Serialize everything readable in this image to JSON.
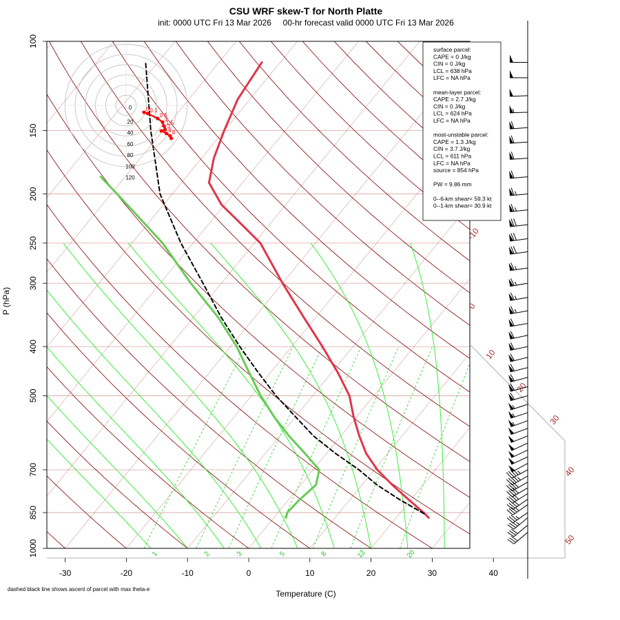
{
  "chart_data": {
    "type": "skew-t",
    "title": "CSU WRF skew-T for North Platte",
    "subtitle": "init: 0000 UTC Fri 13 Mar 2026     00-hr forecast valid 0000 UTC Fri 13 Mar 2026",
    "xlabel": "Temperature (C)",
    "ylabel": "P (hPa)",
    "xlim": [
      -33,
      45
    ],
    "ylim": [
      1000,
      100
    ],
    "x_ticks": [
      "-30",
      "-20",
      "-10",
      "0",
      "10",
      "20",
      "30",
      "40"
    ],
    "p_ticks": [
      "100",
      "150",
      "200",
      "250",
      "300",
      "400",
      "500",
      "700",
      "850",
      "1000"
    ],
    "isotherm_labels": [
      "-10",
      "0",
      "10",
      "20",
      "30",
      "40",
      "50"
    ],
    "mixing_ratio_labels": [
      "1",
      "2",
      "3",
      "5",
      "8",
      "12",
      "20"
    ],
    "temperature_profile": [
      [
        870,
        25.3
      ],
      [
        850,
        23.8
      ],
      [
        800,
        19.5
      ],
      [
        750,
        15.0
      ],
      [
        700,
        10.5
      ],
      [
        650,
        6.5
      ],
      [
        600,
        3.0
      ],
      [
        550,
        -0.5
      ],
      [
        500,
        -4.0
      ],
      [
        450,
        -9.0
      ],
      [
        400,
        -15.0
      ],
      [
        350,
        -22.0
      ],
      [
        300,
        -30.0
      ],
      [
        250,
        -39.0
      ],
      [
        230,
        -44.5
      ],
      [
        210,
        -50.5
      ],
      [
        190,
        -55.5
      ],
      [
        170,
        -58.0
      ],
      [
        150,
        -60.0
      ],
      [
        130,
        -62.0
      ],
      [
        110,
        -63.0
      ]
    ],
    "dewpoint_profile": [
      [
        870,
        2.0
      ],
      [
        850,
        1.5
      ],
      [
        800,
        1.8
      ],
      [
        750,
        2.5
      ],
      [
        700,
        1.0
      ],
      [
        650,
        -3.5
      ],
      [
        600,
        -8.5
      ],
      [
        550,
        -13.5
      ],
      [
        500,
        -18.5
      ],
      [
        450,
        -23.5
      ],
      [
        400,
        -29.0
      ],
      [
        350,
        -36.0
      ],
      [
        300,
        -45.0
      ],
      [
        250,
        -55.0
      ],
      [
        220,
        -63.0
      ],
      [
        200,
        -69.0
      ],
      [
        185,
        -74.0
      ]
    ],
    "parcel_ascent_note": "dashed black line shows ascent of parcel with max theta-e",
    "parcel_profile": [
      [
        854,
        24.0
      ],
      [
        800,
        18.0
      ],
      [
        750,
        12.5
      ],
      [
        700,
        7.5
      ],
      [
        650,
        1.5
      ],
      [
        600,
        -4.5
      ],
      [
        550,
        -10.0
      ],
      [
        500,
        -16.0
      ],
      [
        450,
        -22.0
      ],
      [
        400,
        -28.5
      ],
      [
        350,
        -35.5
      ],
      [
        300,
        -43.0
      ],
      [
        250,
        -52.0
      ],
      [
        200,
        -62.0
      ],
      [
        150,
        -72.0
      ],
      [
        110,
        -82.0
      ]
    ],
    "hodograph": {
      "ring_labels": [
        "0",
        "20",
        "40",
        "60",
        "80",
        "100",
        "120"
      ],
      "points": [
        [
          0,
          0
        ],
        [
          3,
          1
        ],
        [
          11,
          5
        ],
        [
          15,
          8
        ],
        [
          16,
          11
        ],
        [
          17,
          14
        ],
        [
          14,
          15
        ],
        [
          18,
          17
        ],
        [
          21,
          19
        ],
        [
          22,
          21
        ]
      ],
      "point_labels": [
        "0",
        "0.1",
        "0.5",
        "1",
        "1.5",
        "3",
        "4",
        "6",
        "8"
      ]
    },
    "wind_barbs": [
      [
        930,
        230,
        30
      ],
      [
        900,
        230,
        32
      ],
      [
        870,
        230,
        34
      ],
      [
        850,
        235,
        36
      ],
      [
        820,
        235,
        36
      ],
      [
        800,
        235,
        38
      ],
      [
        780,
        238,
        40
      ],
      [
        760,
        240,
        40
      ],
      [
        740,
        240,
        42
      ],
      [
        720,
        240,
        44
      ],
      [
        700,
        242,
        46
      ],
      [
        680,
        242,
        48
      ],
      [
        660,
        245,
        48
      ],
      [
        640,
        245,
        50
      ],
      [
        620,
        245,
        50
      ],
      [
        600,
        248,
        52
      ],
      [
        580,
        250,
        52
      ],
      [
        560,
        250,
        54
      ],
      [
        540,
        252,
        55
      ],
      [
        520,
        252,
        56
      ],
      [
        500,
        254,
        58
      ],
      [
        480,
        255,
        58
      ],
      [
        460,
        255,
        58
      ],
      [
        440,
        256,
        60
      ],
      [
        420,
        256,
        60
      ],
      [
        400,
        258,
        62
      ],
      [
        380,
        258,
        62
      ],
      [
        360,
        260,
        62
      ],
      [
        340,
        260,
        64
      ],
      [
        320,
        260,
        64
      ],
      [
        300,
        260,
        65
      ],
      [
        280,
        262,
        66
      ],
      [
        260,
        262,
        68
      ],
      [
        245,
        262,
        68
      ],
      [
        230,
        264,
        68
      ],
      [
        215,
        264,
        66
      ],
      [
        200,
        265,
        64
      ],
      [
        185,
        265,
        62
      ],
      [
        170,
        266,
        62
      ],
      [
        158,
        266,
        60
      ],
      [
        148,
        266,
        58
      ],
      [
        138,
        268,
        55
      ],
      [
        128,
        268,
        52
      ],
      [
        118,
        270,
        50
      ],
      [
        110,
        270,
        50
      ]
    ],
    "info_box": [
      "surface parcel:",
      "CAPE = 0 J/kg",
      "CIN = 0 J/kg",
      "LCL = 638 hPa",
      "LFC = NA hPa",
      "",
      "mean-layer parcel:",
      "CAPE = 2.7 J/kg",
      "CIN = 0 J/kg",
      "LCL = 624 hPa",
      "LFC = NA hPa",
      "",
      "most-unstable parcel:",
      "CAPE = 1.3 J/kg",
      "CIN = 3.7 J/kg",
      "LCL = 611 hPa",
      "LFC = NA hPa",
      "source = 854 hPa",
      "",
      "PW =  9.86 mm",
      "",
      "0--6-km shear= 59.3 kt",
      "0--1-km shear= 30.9 kt"
    ],
    "colors": {
      "temperature": "#e0354a",
      "dewpoint": "#66cc55",
      "parcel": "#000000",
      "isotherm": "#a52a2a",
      "isobar": "#d9a3a3",
      "dry_adiabat": "#8b1a1a",
      "moist_adiabat": "#22ee22",
      "mixing_ratio": "#22cc22",
      "hodograph": "#ff0000"
    }
  }
}
